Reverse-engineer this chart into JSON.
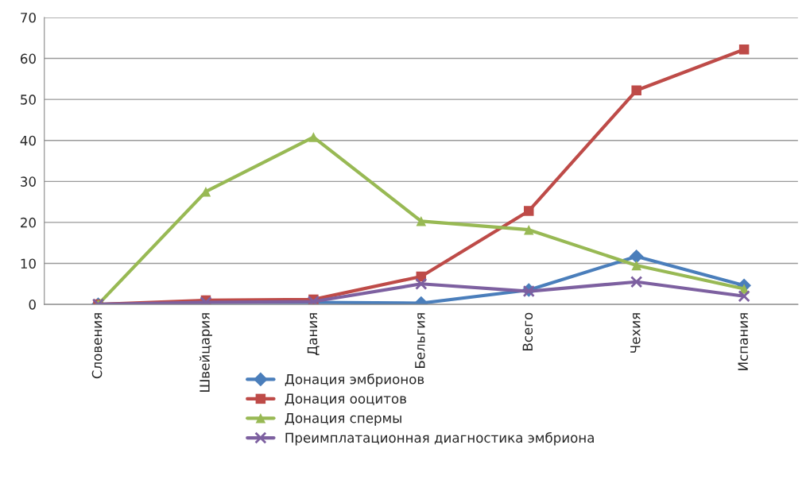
{
  "chart_data": {
    "type": "line",
    "categories": [
      "Словения",
      "Швейцария",
      "Дания",
      "Бельгия",
      "Всего",
      "Чехия",
      "Испания"
    ],
    "series": [
      {
        "name": "Донация эмбрионов",
        "color": "#4a7ebb",
        "marker": "diamond",
        "values": [
          0,
          0.5,
          0.5,
          0.3,
          3.5,
          11.7,
          4.6
        ]
      },
      {
        "name": "Донация ооцитов",
        "color": "#be4b48",
        "marker": "square",
        "values": [
          0,
          1,
          1.2,
          6.8,
          22.8,
          52.2,
          62.2
        ]
      },
      {
        "name": "Донация спермы",
        "color": "#98b954",
        "marker": "triangle",
        "values": [
          0,
          27.5,
          40.8,
          20.3,
          18.2,
          9.5,
          3.8
        ]
      },
      {
        "name": "Преимплатационная диагностика эмбриона",
        "color": "#7d60a0",
        "marker": "cross",
        "values": [
          0,
          0.5,
          0.7,
          5,
          3.2,
          5.5,
          2
        ]
      }
    ],
    "ylim": [
      0,
      70
    ],
    "yticks": [
      0,
      10,
      20,
      30,
      40,
      50,
      60,
      70
    ],
    "grid": "y",
    "legend": "bottom"
  }
}
